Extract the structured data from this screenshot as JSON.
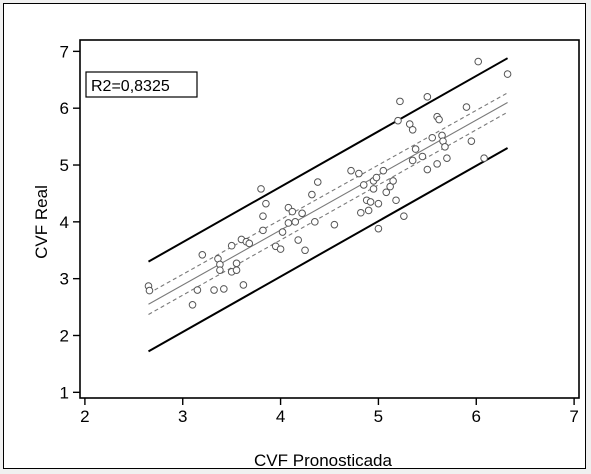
{
  "chart_data": {
    "type": "scatter",
    "title": "",
    "xlabel": "CVF Pronosticada",
    "ylabel": "CVF Real",
    "xlim": [
      1.95,
      7.05
    ],
    "ylim": [
      0.9,
      7.2
    ],
    "xticks": [
      2,
      3,
      4,
      5,
      6,
      7
    ],
    "yticks": [
      1,
      2,
      3,
      4,
      5,
      6,
      7
    ],
    "annotation": "R2=0,8325",
    "grid": false,
    "points": [
      {
        "x": 2.65,
        "y": 2.87
      },
      {
        "x": 2.66,
        "y": 2.79
      },
      {
        "x": 3.1,
        "y": 2.54
      },
      {
        "x": 3.15,
        "y": 2.8
      },
      {
        "x": 3.2,
        "y": 3.42
      },
      {
        "x": 3.32,
        "y": 2.8
      },
      {
        "x": 3.36,
        "y": 3.35
      },
      {
        "x": 3.38,
        "y": 3.25
      },
      {
        "x": 3.38,
        "y": 3.15
      },
      {
        "x": 3.42,
        "y": 2.82
      },
      {
        "x": 3.5,
        "y": 3.58
      },
      {
        "x": 3.5,
        "y": 3.12
      },
      {
        "x": 3.55,
        "y": 3.27
      },
      {
        "x": 3.55,
        "y": 3.15
      },
      {
        "x": 3.6,
        "y": 3.69
      },
      {
        "x": 3.62,
        "y": 2.89
      },
      {
        "x": 3.65,
        "y": 3.65
      },
      {
        "x": 3.68,
        "y": 3.62
      },
      {
        "x": 3.8,
        "y": 4.58
      },
      {
        "x": 3.82,
        "y": 3.85
      },
      {
        "x": 3.82,
        "y": 4.1
      },
      {
        "x": 3.85,
        "y": 4.32
      },
      {
        "x": 3.95,
        "y": 3.57
      },
      {
        "x": 4.0,
        "y": 3.52
      },
      {
        "x": 4.02,
        "y": 3.82
      },
      {
        "x": 4.08,
        "y": 4.25
      },
      {
        "x": 4.08,
        "y": 3.98
      },
      {
        "x": 4.12,
        "y": 4.18
      },
      {
        "x": 4.15,
        "y": 4.0
      },
      {
        "x": 4.18,
        "y": 3.68
      },
      {
        "x": 4.22,
        "y": 4.15
      },
      {
        "x": 4.25,
        "y": 3.5
      },
      {
        "x": 4.32,
        "y": 4.48
      },
      {
        "x": 4.35,
        "y": 4.0
      },
      {
        "x": 4.38,
        "y": 4.7
      },
      {
        "x": 4.55,
        "y": 3.95
      },
      {
        "x": 4.72,
        "y": 4.9
      },
      {
        "x": 4.8,
        "y": 4.85
      },
      {
        "x": 4.82,
        "y": 4.16
      },
      {
        "x": 4.85,
        "y": 4.65
      },
      {
        "x": 4.88,
        "y": 4.38
      },
      {
        "x": 4.9,
        "y": 4.2
      },
      {
        "x": 4.92,
        "y": 4.35
      },
      {
        "x": 4.95,
        "y": 4.58
      },
      {
        "x": 4.95,
        "y": 4.72
      },
      {
        "x": 4.98,
        "y": 4.78
      },
      {
        "x": 5.0,
        "y": 3.88
      },
      {
        "x": 5.0,
        "y": 4.32
      },
      {
        "x": 5.05,
        "y": 4.9
      },
      {
        "x": 5.08,
        "y": 4.52
      },
      {
        "x": 5.12,
        "y": 4.62
      },
      {
        "x": 5.15,
        "y": 4.72
      },
      {
        "x": 5.18,
        "y": 4.38
      },
      {
        "x": 5.2,
        "y": 5.78
      },
      {
        "x": 5.22,
        "y": 6.12
      },
      {
        "x": 5.26,
        "y": 4.1
      },
      {
        "x": 5.32,
        "y": 5.72
      },
      {
        "x": 5.35,
        "y": 5.62
      },
      {
        "x": 5.35,
        "y": 5.08
      },
      {
        "x": 5.38,
        "y": 5.28
      },
      {
        "x": 5.45,
        "y": 5.15
      },
      {
        "x": 5.5,
        "y": 6.2
      },
      {
        "x": 5.5,
        "y": 4.92
      },
      {
        "x": 5.55,
        "y": 5.48
      },
      {
        "x": 5.6,
        "y": 5.85
      },
      {
        "x": 5.62,
        "y": 5.8
      },
      {
        "x": 5.65,
        "y": 5.52
      },
      {
        "x": 5.66,
        "y": 5.42
      },
      {
        "x": 5.68,
        "y": 5.32
      },
      {
        "x": 5.7,
        "y": 5.12
      },
      {
        "x": 5.6,
        "y": 5.02
      },
      {
        "x": 5.9,
        "y": 6.02
      },
      {
        "x": 5.95,
        "y": 5.42
      },
      {
        "x": 6.02,
        "y": 6.82
      },
      {
        "x": 6.08,
        "y": 5.12
      },
      {
        "x": 6.32,
        "y": 6.6
      }
    ],
    "lines": [
      {
        "kind": "regression",
        "x": [
          2.65,
          6.32
        ],
        "y": [
          2.55,
          6.1
        ],
        "style": "solid-thin",
        "color": "#7a7a7a"
      },
      {
        "kind": "confidence-upper",
        "x": [
          2.65,
          6.32
        ],
        "y": [
          2.74,
          6.27
        ],
        "style": "dashed",
        "color": "#7a7a7a"
      },
      {
        "kind": "confidence-lower",
        "x": [
          2.65,
          6.32
        ],
        "y": [
          2.37,
          5.93
        ],
        "style": "dashed",
        "color": "#7a7a7a"
      },
      {
        "kind": "prediction-upper",
        "x": [
          2.65,
          6.32
        ],
        "y": [
          3.3,
          6.88
        ],
        "style": "solid-thick",
        "color": "#000000"
      },
      {
        "kind": "prediction-lower",
        "x": [
          2.65,
          6.32
        ],
        "y": [
          1.72,
          5.3
        ],
        "style": "solid-thick",
        "color": "#000000"
      }
    ]
  }
}
